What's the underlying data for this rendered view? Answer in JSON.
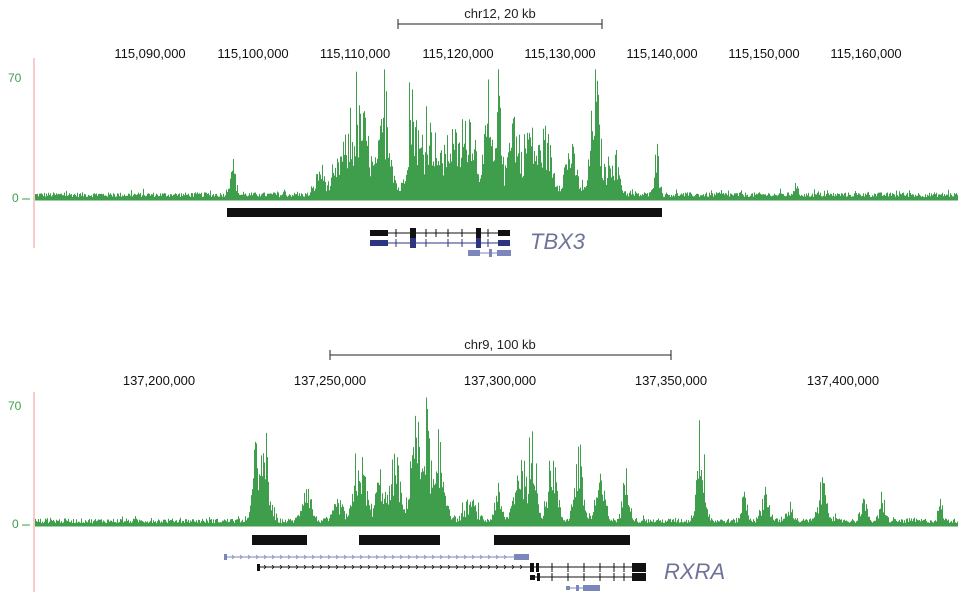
{
  "colors": {
    "signal": "#3f9e4c",
    "axis_line": "#f2a6a6",
    "y_label": "#3f9e4c",
    "peak_bar": "#111111",
    "gene_label": "#6e7398",
    "gene_dark": "#2d3480",
    "gene_light": "#7b86bb",
    "scale": "#222222"
  },
  "panels": [
    {
      "id": "tbx3",
      "scale_label": "chr12, 20 kb",
      "ticks": [
        "115,090,000",
        "115,100,000",
        "115,110,000",
        "115,120,000",
        "115,130,000",
        "115,140,000",
        "115,150,000",
        "115,160,000"
      ],
      "y_max_label": "70",
      "y_min_label": "0",
      "gene_label": "TBX3"
    },
    {
      "id": "rxra",
      "scale_label": "chr9, 100 kb",
      "ticks": [
        "137,200,000",
        "137,250,000",
        "137,300,000",
        "137,350,000",
        "137,400,000"
      ],
      "y_max_label": "70",
      "y_min_label": "0",
      "gene_label": "RXRA"
    }
  ]
}
